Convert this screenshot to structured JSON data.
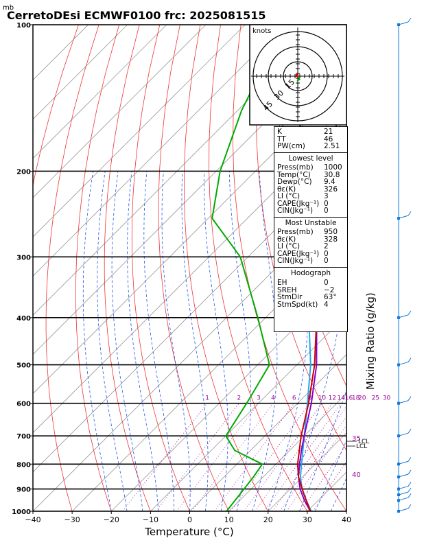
{
  "chart_data": {
    "type": "skew-t",
    "title": "CerretoDEsi ECMWF0100 frc: 2025081515",
    "pressure_unit": "mb",
    "xlabel": "Temperature (°C)",
    "right_axis_label": "Mixing Ratio (g/kg)",
    "xlim": [
      -40,
      40
    ],
    "ylim_mb": [
      1000,
      100
    ],
    "x_ticks": [
      "−40",
      "−30",
      "−20",
      "−10",
      "0",
      "10",
      "20",
      "30",
      "40"
    ],
    "y_ticks": [
      "100",
      "200",
      "300",
      "400",
      "500",
      "600",
      "700",
      "800",
      "900",
      "1000"
    ],
    "mixing_ratio_labels": [
      "1",
      "2",
      "3",
      "4",
      "6",
      "8",
      "10",
      "12",
      "14",
      "16",
      "18",
      "20",
      "25",
      "30"
    ],
    "edge_labels": [
      "35",
      "40"
    ],
    "level_labels": [
      "LCL",
      "LCL"
    ],
    "temperature": {
      "color": "#cc0000",
      "points": [
        [
          1000,
          30.8
        ],
        [
          925,
          25
        ],
        [
          850,
          19
        ],
        [
          800,
          15.5
        ],
        [
          700,
          9.2
        ],
        [
          600,
          2.8
        ],
        [
          500,
          -5.5
        ],
        [
          400,
          -17
        ],
        [
          300,
          -31
        ],
        [
          250,
          -41
        ],
        [
          200,
          -52
        ],
        [
          150,
          -64
        ],
        [
          100,
          -77
        ]
      ]
    },
    "dewpoint": {
      "color": "#00aa00",
      "points": [
        [
          1000,
          9.4
        ],
        [
          925,
          8.5
        ],
        [
          850,
          7.5
        ],
        [
          800,
          6.5
        ],
        [
          750,
          -4
        ],
        [
          700,
          -10
        ],
        [
          600,
          -13
        ],
        [
          500,
          -17
        ],
        [
          400,
          -32
        ],
        [
          300,
          -52
        ],
        [
          250,
          -69
        ],
        [
          200,
          -79
        ],
        [
          150,
          -89
        ],
        [
          100,
          -100
        ]
      ]
    },
    "parcel_profiles": [
      {
        "color": "#22aaee",
        "points": [
          [
            1000,
            31
          ],
          [
            950,
            27
          ],
          [
            900,
            23
          ],
          [
            850,
            19.5
          ],
          [
            800,
            16.5
          ],
          [
            700,
            10
          ],
          [
            600,
            2.5
          ],
          [
            500,
            -6.5
          ],
          [
            400,
            -19
          ],
          [
            300,
            -36
          ],
          [
            200,
            -62
          ],
          [
            120,
            -92
          ]
        ]
      },
      {
        "color": "#8800cc",
        "points": [
          [
            1000,
            30.8
          ],
          [
            950,
            26.5
          ],
          [
            900,
            22.5
          ],
          [
            850,
            19
          ],
          [
            800,
            16
          ],
          [
            750,
            13
          ],
          [
            700,
            10
          ],
          [
            600,
            3.5
          ],
          [
            500,
            -5
          ],
          [
            400,
            -17
          ],
          [
            300,
            -33
          ],
          [
            200,
            -58
          ],
          [
            120,
            -87
          ]
        ]
      }
    ],
    "hodograph": {
      "label": "knots",
      "ring_labels": [
        "15",
        "30",
        "45"
      ]
    },
    "wind_barbs_mb": [
      1000,
      950,
      925,
      900,
      850,
      800,
      700,
      600,
      500,
      400,
      250,
      100
    ]
  },
  "indices": {
    "general": [
      {
        "label": "K",
        "value": "21"
      },
      {
        "label": "TT",
        "value": "46"
      },
      {
        "label": "PW(cm)",
        "value": "2.51"
      }
    ],
    "lowest_level": {
      "heading": "Lowest level",
      "rows": [
        {
          "label": "Press(mb)",
          "value": "1000"
        },
        {
          "label": "Temp(°C)",
          "value": "30.8"
        },
        {
          "label": "Dewp(°C)",
          "value": "9.4"
        },
        {
          "label": "θε(K)",
          "value": "326"
        },
        {
          "label": "LI (°C)",
          "value": "3"
        },
        {
          "label": "CAPE(Jkg⁻¹)",
          "value": "0"
        },
        {
          "label": "CIN(Jkg⁻¹)",
          "value": "0"
        }
      ]
    },
    "most_unstable": {
      "heading": "Most Unstable",
      "rows": [
        {
          "label": "Press(mb)",
          "value": "950"
        },
        {
          "label": "θε(K)",
          "value": "328"
        },
        {
          "label": "LI (°C)",
          "value": "2"
        },
        {
          "label": "CAPE(Jkg⁻¹)",
          "value": "0"
        },
        {
          "label": "CIN(Jkg⁻¹)",
          "value": "0"
        }
      ]
    },
    "hodograph": {
      "heading": "Hodograph",
      "rows": [
        {
          "label": "EH",
          "value": "0"
        },
        {
          "label": "SREH",
          "value": "−2"
        },
        {
          "label": "StmDir",
          "value": "63°"
        },
        {
          "label": "StmSpd(kt)",
          "value": "4"
        }
      ]
    }
  }
}
